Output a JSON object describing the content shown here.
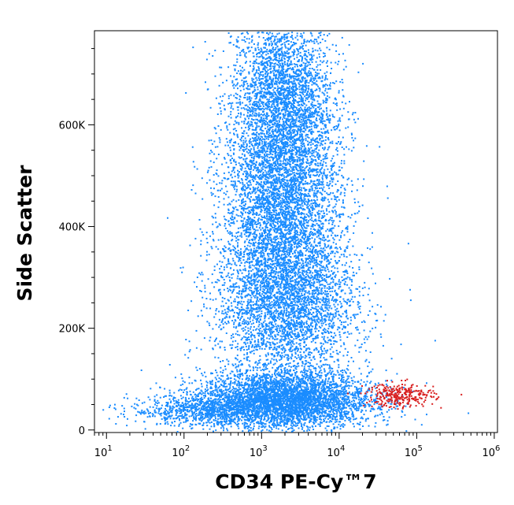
{
  "chart_data": {
    "type": "scatter",
    "xlabel": "CD34 PE-Cy™7",
    "ylabel": "Side Scatter",
    "x_scale": "log",
    "x_ticks": [
      {
        "base": "10",
        "exp": "1",
        "value": 10
      },
      {
        "base": "10",
        "exp": "2",
        "value": 100
      },
      {
        "base": "10",
        "exp": "3",
        "value": 1000
      },
      {
        "base": "10",
        "exp": "4",
        "value": 10000
      },
      {
        "base": "10",
        "exp": "5",
        "value": 100000
      },
      {
        "base": "10",
        "exp": "6",
        "value": 1000000
      }
    ],
    "y_ticks": [
      {
        "label": "0",
        "value": 0
      },
      {
        "label": "200K",
        "value": 200000
      },
      {
        "label": "400K",
        "value": 400000
      },
      {
        "label": "600K",
        "value": 600000
      }
    ],
    "xlim": [
      7,
      1100000
    ],
    "ylim": [
      -5000,
      785000
    ],
    "grid": false,
    "series": [
      {
        "color": "#1a8cff",
        "clusters": [
          {
            "x_center": 1800,
            "y_center": 650000,
            "x_spread_decades": 0.33,
            "y_spread": 90000,
            "count": 3200
          },
          {
            "x_center": 1800,
            "y_center": 450000,
            "x_spread_decades": 0.38,
            "y_spread": 90000,
            "count": 3400
          },
          {
            "x_center": 2000,
            "y_center": 250000,
            "x_spread_decades": 0.45,
            "y_spread": 80000,
            "count": 3600
          },
          {
            "x_center": 2000,
            "y_center": 60000,
            "x_spread_decades": 0.55,
            "y_spread": 28000,
            "count": 4200
          },
          {
            "x_center": 200,
            "y_center": 40000,
            "x_spread_decades": 0.5,
            "y_spread": 15000,
            "count": 900
          }
        ]
      },
      {
        "color": "#d81e1e",
        "clusters": [
          {
            "x_center": 60000,
            "y_center": 70000,
            "x_spread_decades": 0.22,
            "y_spread": 12000,
            "count": 300
          }
        ]
      }
    ]
  }
}
